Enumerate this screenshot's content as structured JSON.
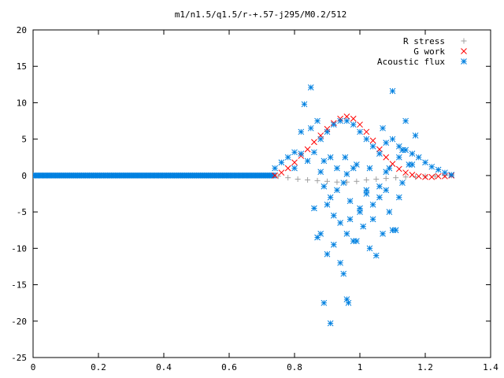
{
  "chart_data": {
    "type": "scatter",
    "title": "m1/n1.5/q1.5/r-+.57-j295/M0.2/512",
    "xlabel": "",
    "ylabel": "",
    "xlim": [
      0,
      1.4
    ],
    "ylim": [
      -25,
      20
    ],
    "grid": false,
    "legend_position": "top-right",
    "x_ticks": [
      "0",
      "0.2",
      "0.4",
      "0.6",
      "0.8",
      "1",
      "1.2",
      "1.4"
    ],
    "y_ticks": [
      "20",
      "15",
      "10",
      "5",
      "0",
      "-5",
      "-10",
      "-15",
      "-20",
      "-25"
    ],
    "series": [
      {
        "name": "R stress",
        "marker": "plus",
        "color": "#a0a0a0",
        "x": [
          0.75,
          0.78,
          0.81,
          0.84,
          0.87,
          0.9,
          0.93,
          0.96,
          0.99,
          1.02,
          1.05,
          1.08,
          1.11,
          1.14,
          1.17,
          1.2,
          1.23,
          1.26,
          1.28
        ],
        "y": [
          -0.1,
          -0.3,
          -0.5,
          -0.6,
          -0.7,
          -0.8,
          -0.9,
          -0.9,
          -0.8,
          -0.6,
          -0.5,
          -0.4,
          -0.3,
          -0.2,
          -0.2,
          -0.1,
          -0.1,
          0,
          0
        ]
      },
      {
        "name": "G work",
        "marker": "cross",
        "color": "#ff0000",
        "x": [
          0.74,
          0.76,
          0.78,
          0.8,
          0.82,
          0.84,
          0.86,
          0.88,
          0.9,
          0.92,
          0.94,
          0.96,
          0.98,
          1.0,
          1.02,
          1.04,
          1.06,
          1.08,
          1.1,
          1.12,
          1.14,
          1.16,
          1.18,
          1.2,
          1.22,
          1.24,
          1.26,
          1.28
        ],
        "y": [
          0,
          0.4,
          1.0,
          1.8,
          2.7,
          3.6,
          4.6,
          5.5,
          6.4,
          7.2,
          7.8,
          8.1,
          7.8,
          7.0,
          6.0,
          4.8,
          3.6,
          2.5,
          1.6,
          0.9,
          0.4,
          0.1,
          -0.1,
          -0.2,
          -0.2,
          -0.1,
          -0.1,
          0
        ]
      },
      {
        "name": "Acoustic flux",
        "marker": "star",
        "color": "#0080e0",
        "x": [
          0.74,
          0.76,
          0.78,
          0.8,
          0.82,
          0.84,
          0.86,
          0.88,
          0.9,
          0.92,
          0.94,
          0.96,
          0.98,
          1.0,
          1.02,
          1.04,
          1.06,
          1.08,
          1.1,
          1.12,
          1.14,
          1.16,
          1.18,
          1.2,
          1.22,
          1.24,
          1.26,
          1.28,
          0.8,
          0.83,
          0.85,
          0.87,
          0.88,
          0.89,
          0.9,
          0.91,
          0.92,
          0.93,
          0.94,
          0.95,
          0.96,
          0.97,
          0.97,
          0.98,
          0.99,
          1.0,
          1.01,
          1.02,
          1.03,
          1.04,
          1.05,
          1.06,
          1.07,
          1.08,
          1.09,
          1.1,
          1.11,
          1.12,
          1.13,
          1.15,
          0.87,
          0.88,
          0.9,
          0.92,
          0.94,
          0.95,
          0.98,
          1.0,
          1.02,
          1.04,
          1.06,
          1.08,
          1.1,
          1.12,
          1.14,
          1.16,
          0.85,
          0.89,
          0.91,
          0.93,
          0.96,
          0.99,
          1.03,
          1.07,
          1.09,
          1.13,
          0.96,
          0.965,
          0.89,
          0.91,
          0.955,
          0.86,
          0.82,
          1.17
        ],
        "y": [
          1.0,
          1.8,
          2.5,
          3.2,
          3.0,
          2.0,
          3.2,
          5.0,
          6.0,
          7.0,
          7.5,
          7.5,
          7.0,
          6.0,
          5.0,
          4.0,
          3.0,
          4.5,
          5.0,
          4.0,
          3.5,
          3.0,
          2.5,
          1.8,
          1.2,
          0.8,
          0.4,
          0.1,
          1.0,
          9.8,
          12.1,
          7.5,
          0.5,
          -1.5,
          -4.0,
          -3.0,
          -5.5,
          -2.0,
          -6.5,
          -1.0,
          -8.0,
          -3.5,
          -6.0,
          1.0,
          -9.0,
          -4.5,
          -7.0,
          -2.5,
          -10.0,
          -6.0,
          -11.0,
          -3.0,
          -8.0,
          0.5,
          -5.0,
          11.6,
          -7.5,
          2.5,
          -1.0,
          1.5,
          -8.5,
          -8.0,
          -10.8,
          -9.5,
          -12.0,
          -13.5,
          -9.0,
          -5.0,
          -2.0,
          -4.0,
          -1.5,
          -2.0,
          -7.5,
          -3.0,
          7.5,
          1.5,
          6.5,
          2.0,
          2.5,
          1.0,
          0.2,
          1.5,
          1.0,
          6.5,
          1.0,
          3.5,
          -17.0,
          -17.5,
          -17.5,
          -20.3,
          2.5,
          -4.5,
          6.0,
          5.5
        ]
      }
    ]
  }
}
